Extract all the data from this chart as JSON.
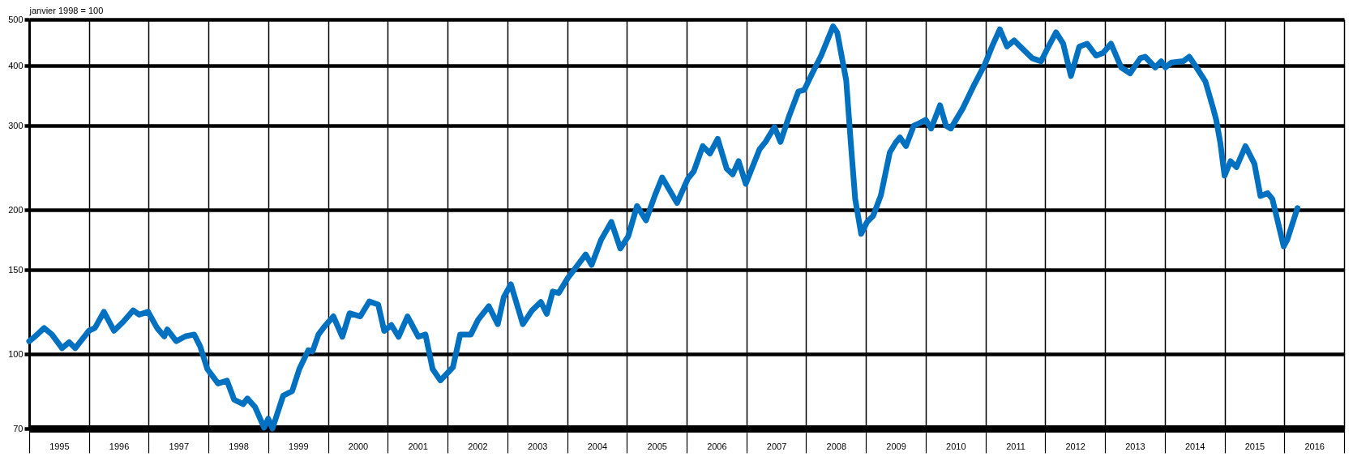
{
  "chart_data": {
    "type": "line",
    "ylabel": "janvier 1998 = 100",
    "log": "y",
    "grid": true,
    "line_style": "solid",
    "xlim": [
      1995,
      2017
    ],
    "ylim": [
      70,
      500
    ],
    "yticks": [
      70,
      100,
      150,
      200,
      300,
      400,
      500
    ],
    "xticks": [
      {
        "value": 1995,
        "label": null
      },
      {
        "value": 1995.5,
        "label": "1995"
      },
      {
        "value": 1996,
        "label": null
      },
      {
        "value": 1996.5,
        "label": "1996"
      },
      {
        "value": 1997,
        "label": null
      },
      {
        "value": 1997.5,
        "label": "1997"
      },
      {
        "value": 1998,
        "label": null
      },
      {
        "value": 1998.5,
        "label": "1998"
      },
      {
        "value": 1999,
        "label": null
      },
      {
        "value": 1999.5,
        "label": "1999"
      },
      {
        "value": 2000,
        "label": null
      },
      {
        "value": 2000.5,
        "label": "2000"
      },
      {
        "value": 2001,
        "label": null
      },
      {
        "value": 2001.5,
        "label": "2001"
      },
      {
        "value": 2002,
        "label": null
      },
      {
        "value": 2002.5,
        "label": "2002"
      },
      {
        "value": 2003,
        "label": null
      },
      {
        "value": 2003.5,
        "label": "2003"
      },
      {
        "value": 2004,
        "label": null
      },
      {
        "value": 2004.5,
        "label": "2004"
      },
      {
        "value": 2005,
        "label": null
      },
      {
        "value": 2005.5,
        "label": "2005"
      },
      {
        "value": 2006,
        "label": null
      },
      {
        "value": 2006.5,
        "label": "2006"
      },
      {
        "value": 2007,
        "label": null
      },
      {
        "value": 2007.5,
        "label": "2007"
      },
      {
        "value": 2008,
        "label": null
      },
      {
        "value": 2008.5,
        "label": "2008"
      },
      {
        "value": 2009,
        "label": null
      },
      {
        "value": 2009.5,
        "label": "2009"
      },
      {
        "value": 2010,
        "label": null
      },
      {
        "value": 2010.5,
        "label": "2010"
      },
      {
        "value": 2011,
        "label": null
      },
      {
        "value": 2011.5,
        "label": "2011"
      },
      {
        "value": 2012,
        "label": null
      },
      {
        "value": 2012.5,
        "label": "2012"
      },
      {
        "value": 2013,
        "label": null
      },
      {
        "value": 2013.5,
        "label": "2013"
      },
      {
        "value": 2014,
        "label": null
      },
      {
        "value": 2014.5,
        "label": "2014"
      },
      {
        "value": 2015,
        "label": null
      },
      {
        "value": 2015.5,
        "label": "2015"
      },
      {
        "value": 2016,
        "label": null
      },
      {
        "value": 2016.5,
        "label": "2016"
      },
      {
        "value": 2017,
        "label": null
      }
    ],
    "x": [
      1995.0,
      1995.1,
      1995.25,
      1995.38,
      1995.55,
      1995.67,
      1995.77,
      1996.0,
      1996.1,
      1996.25,
      1996.42,
      1996.57,
      1996.74,
      1996.84,
      1996.99,
      1997.14,
      1997.26,
      1997.31,
      1997.46,
      1997.61,
      1997.76,
      1997.86,
      1997.98,
      1998.16,
      1998.31,
      1998.43,
      1998.58,
      1998.65,
      1998.78,
      1998.93,
      1999.0,
      1999.07,
      1999.25,
      1999.4,
      1999.52,
      1999.67,
      1999.74,
      1999.84,
      1999.94,
      2000.09,
      2000.24,
      2000.36,
      2000.54,
      2000.69,
      2000.84,
      2000.94,
      2001.06,
      2001.18,
      2001.33,
      2001.51,
      2001.63,
      2001.75,
      2001.88,
      2002.09,
      2002.21,
      2002.39,
      2002.51,
      2002.69,
      2002.84,
      2002.94,
      2003.06,
      2003.26,
      2003.41,
      2003.56,
      2003.66,
      2003.76,
      2003.86,
      2004.01,
      2004.16,
      2004.31,
      2004.41,
      2004.57,
      2004.74,
      2004.89,
      2005.02,
      2005.17,
      2005.32,
      2005.47,
      2005.59,
      2005.84,
      2006.02,
      2006.12,
      2006.27,
      2006.39,
      2006.52,
      2006.67,
      2006.77,
      2006.87,
      2006.99,
      2007.22,
      2007.32,
      2007.47,
      2007.57,
      2007.72,
      2007.87,
      2007.97,
      2008.1,
      2008.25,
      2008.45,
      2008.52,
      2008.67,
      2008.75,
      2008.82,
      2008.92,
      2009.02,
      2009.12,
      2009.25,
      2009.4,
      2009.5,
      2009.57,
      2009.67,
      2009.8,
      2009.9,
      2010.0,
      2010.09,
      2010.24,
      2010.34,
      2010.42,
      2010.62,
      2010.81,
      2010.99,
      2011.11,
      2011.24,
      2011.36,
      2011.48,
      2011.63,
      2011.78,
      2011.93,
      2012.03,
      2012.18,
      2012.3,
      2012.43,
      2012.57,
      2012.7,
      2012.85,
      2012.97,
      2013.1,
      2013.27,
      2013.42,
      2013.59,
      2013.67,
      2013.84,
      2013.94,
      2014.01,
      2014.11,
      2014.31,
      2014.41,
      2014.53,
      2014.68,
      2014.81,
      2014.86,
      2014.93,
      2015.0,
      2015.1,
      2015.2,
      2015.35,
      2015.5,
      2015.6,
      2015.72,
      2015.8,
      2015.99,
      2016.05,
      2016.22
    ],
    "series": [
      {
        "color": "#0070c0",
        "values": [
          106.5,
          109,
          113.5,
          110,
          103,
          106,
          103,
          112,
          113.5,
          122.7,
          112,
          116.8,
          123.5,
          121,
          122.7,
          113.5,
          109,
          112.7,
          106.5,
          109,
          110,
          104,
          93.2,
          86.9,
          88.1,
          80.4,
          78.7,
          80.9,
          77.6,
          70.3,
          73.4,
          70,
          82,
          83.8,
          93.2,
          102,
          101.4,
          110,
          114.3,
          120,
          108.8,
          121.8,
          120,
          128.9,
          127,
          111.9,
          115.1,
          108.8,
          120,
          108.8,
          110,
          93.2,
          88.2,
          94,
          110,
          110,
          118,
          126,
          115.6,
          131.5,
          140,
          115.6,
          123.3,
          128.6,
          121.5,
          135.2,
          134.3,
          144.2,
          152.6,
          161.6,
          153.7,
          173.5,
          189,
          166.3,
          176,
          204,
          190.4,
          214.7,
          234,
          207,
          232.5,
          241,
          272,
          262.5,
          281.7,
          244,
          237.4,
          253,
          227,
          268,
          277.6,
          298.2,
          277.6,
          315.6,
          353.6,
          356.6,
          385.5,
          420,
          483.6,
          469.6,
          373,
          273,
          211,
          178.5,
          189,
          194.5,
          214.7,
          264,
          277,
          283.6,
          272,
          300,
          304,
          308.6,
          296,
          331,
          300,
          296,
          326,
          365,
          403,
          439,
          477,
          439,
          452,
          433,
          415,
          409,
          433,
          470,
          445,
          381,
          439,
          445,
          420,
          426,
          445,
          397,
          386,
          415,
          418,
          397,
          409,
          397,
          406.5,
          409,
          418,
          397,
          371,
          326,
          308.6,
          276,
          236,
          253,
          246,
          272,
          250,
          214,
          217,
          211,
          168,
          173.5,
          202
        ]
      }
    ]
  }
}
